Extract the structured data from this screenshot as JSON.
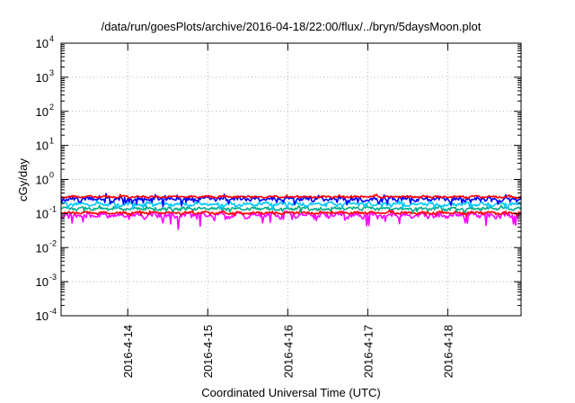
{
  "chart_data": {
    "type": "line",
    "title": "/data/run/goesPlots/archive/2016-04-18/22:00/flux/../bryn/5daysMoon.plot",
    "xlabel": "Coordinated Universal Time (UTC)",
    "ylabel": "cGy/day",
    "yscale": "log",
    "ylim": [
      0.0001,
      10000
    ],
    "xlim": [
      "2016-04-13 04:00",
      "2016-04-18 22:00"
    ],
    "grid": true,
    "x_ticks": [
      "2016-4-14",
      "2016-4-15",
      "2016-4-16",
      "2016-4-17",
      "2016-4-18"
    ],
    "y_ticks": [
      {
        "base": "10",
        "exp": "-4"
      },
      {
        "base": "10",
        "exp": "-3"
      },
      {
        "base": "10",
        "exp": "-2"
      },
      {
        "base": "10",
        "exp": "-1"
      },
      {
        "base": "10",
        "exp": "0"
      },
      {
        "base": "10",
        "exp": "1"
      },
      {
        "base": "10",
        "exp": "2"
      },
      {
        "base": "10",
        "exp": "3"
      },
      {
        "base": "10",
        "exp": "4"
      }
    ],
    "series": [
      {
        "color": "#ff00ff",
        "level": 0.09,
        "noise": 0.16,
        "dips": 0.55,
        "seed": 11
      },
      {
        "color": "#ff0000",
        "level": 0.105,
        "noise": 0.07,
        "dips": 0.15,
        "seed": 23
      },
      {
        "color": "#00aa88",
        "level": 0.14,
        "noise": 0.08,
        "dips": 0.2,
        "seed": 37
      },
      {
        "color": "#00c8ff",
        "level": 0.19,
        "noise": 0.1,
        "dips": 0.25,
        "seed": 51
      },
      {
        "color": "#0000ff",
        "level": 0.27,
        "noise": 0.13,
        "dips": 0.3,
        "seed": 67
      },
      {
        "color": "#ff0000",
        "level": 0.31,
        "noise": 0.06,
        "dips": 0.05,
        "seed": 79
      }
    ]
  }
}
